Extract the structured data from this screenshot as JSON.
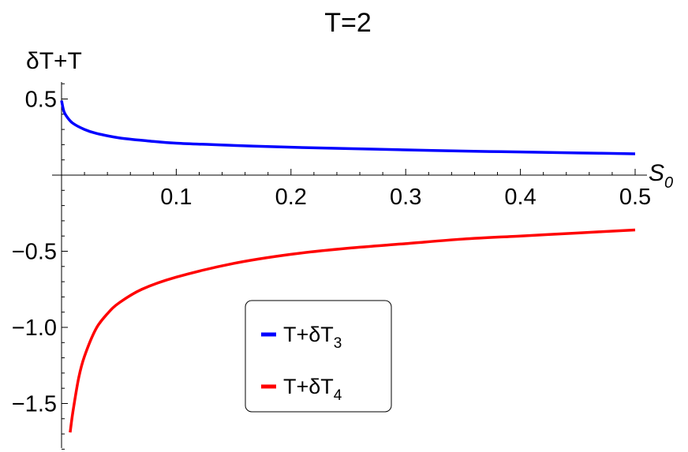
{
  "chart_data": {
    "type": "line",
    "title": "T=2",
    "ylabel": "δT+T",
    "xlabel": "S",
    "xlabel_subscript": "0",
    "xlim": [
      0,
      0.5
    ],
    "ylim": [
      -1.8,
      0.6
    ],
    "x_ticks": [
      0.1,
      0.2,
      0.3,
      0.4,
      0.5
    ],
    "x_tick_labels": [
      "0.1",
      "0.2",
      "0.3",
      "0.4",
      "0.5"
    ],
    "y_ticks": [
      0.5,
      -0.5,
      -1.0,
      -1.5
    ],
    "y_tick_labels": [
      "0.5",
      "−0.5",
      "−1.0",
      "−1.5"
    ],
    "grid": false,
    "legend_position": "lower-center",
    "series": [
      {
        "name_main": "T+δT",
        "name_sub": "3",
        "color": "#0000ff",
        "x": [
          0.0,
          0.002,
          0.005,
          0.01,
          0.02,
          0.03,
          0.05,
          0.075,
          0.1,
          0.15,
          0.2,
          0.25,
          0.3,
          0.35,
          0.4,
          0.45,
          0.5
        ],
        "y": [
          0.49,
          0.42,
          0.38,
          0.34,
          0.3,
          0.275,
          0.245,
          0.225,
          0.21,
          0.195,
          0.183,
          0.174,
          0.166,
          0.158,
          0.152,
          0.146,
          0.14
        ]
      },
      {
        "name_main": "T+δT",
        "name_sub": "4",
        "color": "#ff0000",
        "x": [
          0.0075,
          0.01,
          0.015,
          0.02,
          0.03,
          0.04,
          0.05,
          0.07,
          0.1,
          0.15,
          0.2,
          0.25,
          0.3,
          0.35,
          0.4,
          0.45,
          0.5
        ],
        "y": [
          -1.69,
          -1.55,
          -1.33,
          -1.19,
          -1.01,
          -0.91,
          -0.84,
          -0.75,
          -0.67,
          -0.58,
          -0.52,
          -0.48,
          -0.45,
          -0.42,
          -0.4,
          -0.38,
          -0.36
        ]
      }
    ]
  }
}
